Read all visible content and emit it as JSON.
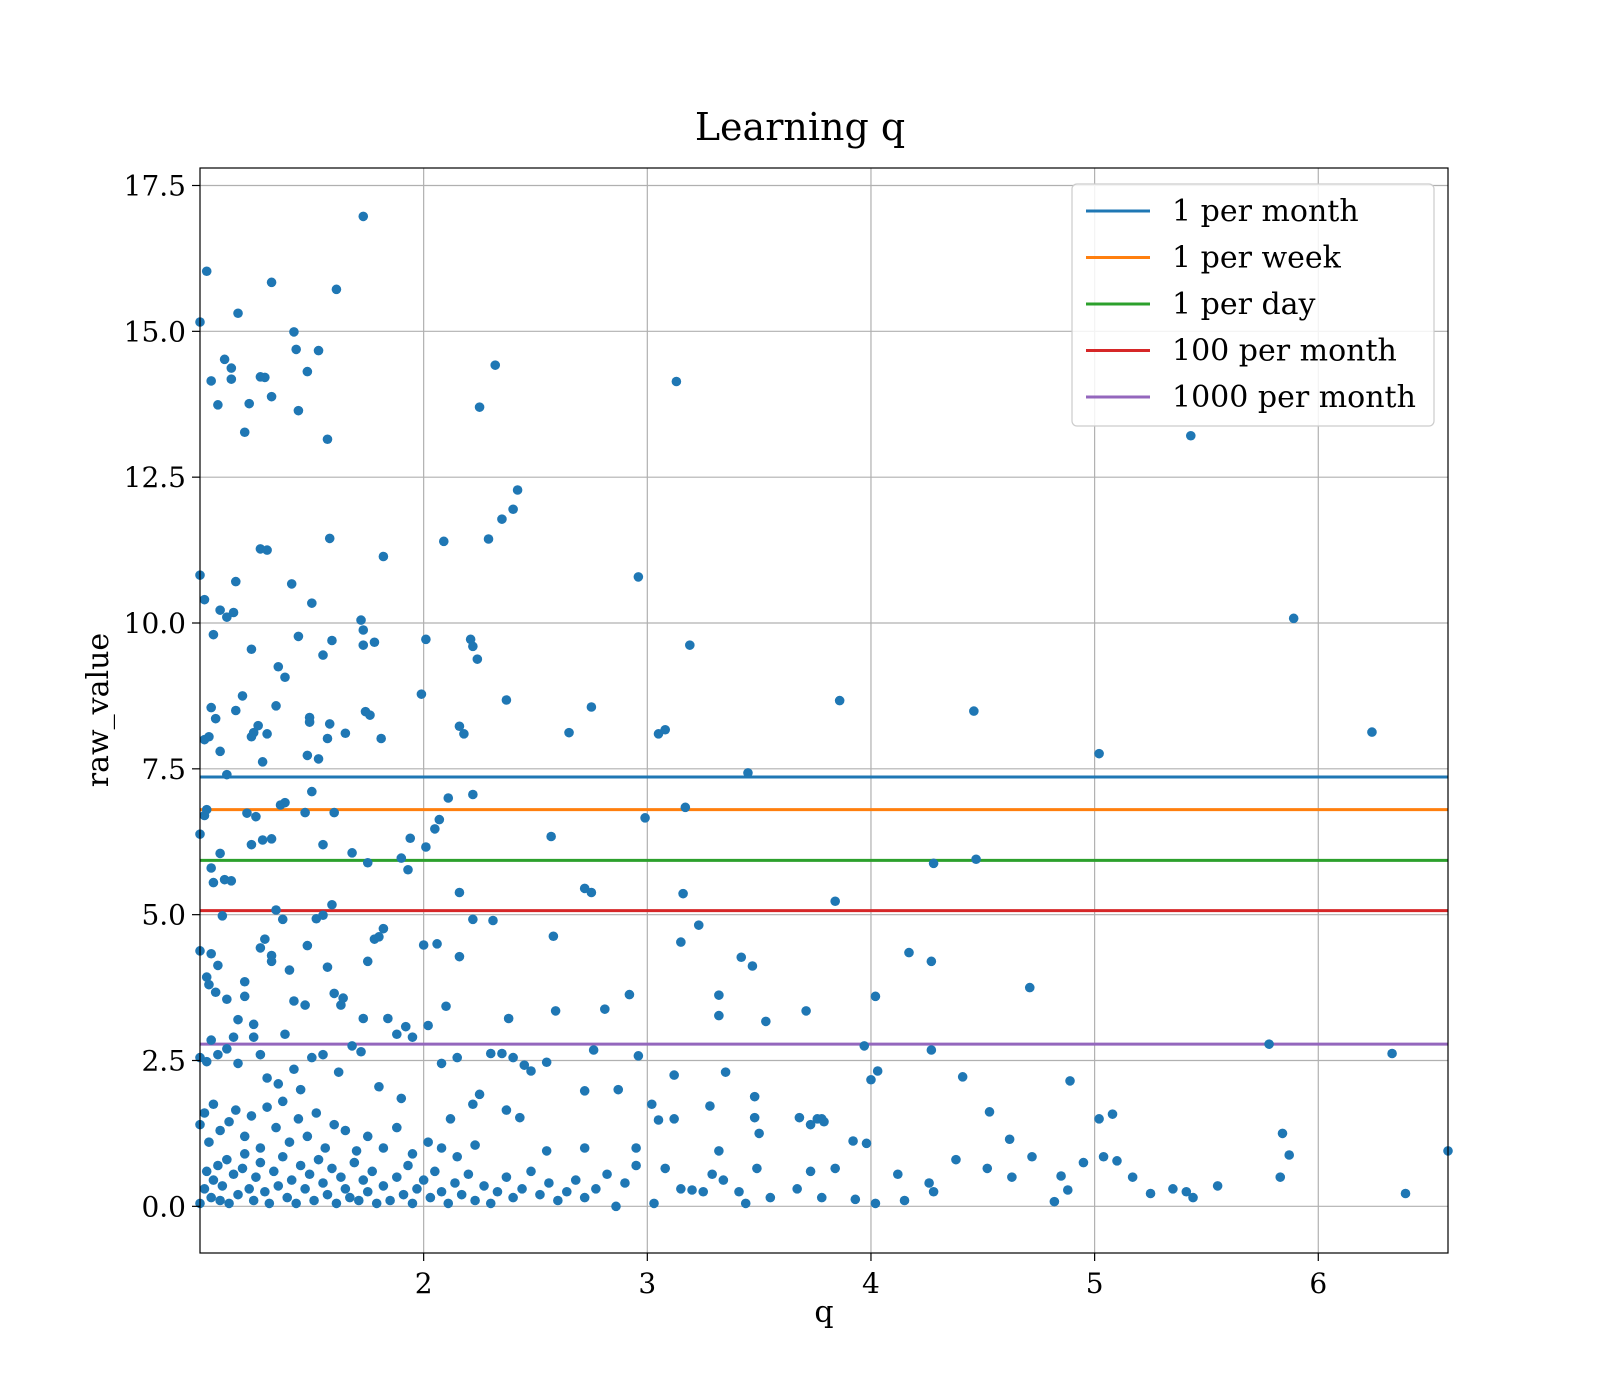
{
  "chart_data": {
    "type": "scatter",
    "title": "Learning q",
    "xlabel": "q",
    "ylabel": "raw_value",
    "xlim": [
      1.0,
      6.58
    ],
    "ylim": [
      -0.8,
      17.8
    ],
    "x_ticks": [
      2,
      3,
      4,
      5,
      6
    ],
    "y_ticks": [
      0.0,
      2.5,
      5.0,
      7.5,
      10.0,
      12.5,
      15.0,
      17.5
    ],
    "x_tick_labels": [
      "2",
      "3",
      "4",
      "5",
      "6"
    ],
    "y_tick_labels": [
      "0.0",
      "2.5",
      "5.0",
      "7.5",
      "10.0",
      "12.5",
      "15.0",
      "17.5"
    ],
    "grid": true,
    "legend_position": "top-right",
    "point_color": "#1f77b4",
    "hlines": [
      {
        "name": "1 per month",
        "y": 7.36,
        "color": "#1f77b4"
      },
      {
        "name": "1 per week",
        "y": 6.8,
        "color": "#ff7f0e"
      },
      {
        "name": "1 per day",
        "y": 5.93,
        "color": "#2ca02c"
      },
      {
        "name": "100 per month",
        "y": 5.07,
        "color": "#d62728"
      },
      {
        "name": "1000 per month",
        "y": 2.78,
        "color": "#9467bd"
      }
    ],
    "points": [
      [
        1.0,
        15.16
      ],
      [
        1.03,
        16.03
      ],
      [
        1.05,
        14.15
      ],
      [
        1.08,
        13.74
      ],
      [
        1.11,
        14.52
      ],
      [
        1.14,
        14.37
      ],
      [
        1.14,
        14.18
      ],
      [
        1.17,
        15.31
      ],
      [
        1.2,
        13.27
      ],
      [
        1.22,
        13.76
      ],
      [
        1.27,
        14.22
      ],
      [
        1.29,
        14.21
      ],
      [
        1.32,
        15.84
      ],
      [
        1.32,
        13.88
      ],
      [
        1.42,
        14.99
      ],
      [
        1.43,
        14.69
      ],
      [
        1.44,
        13.64
      ],
      [
        1.48,
        14.31
      ],
      [
        1.53,
        14.67
      ],
      [
        1.57,
        13.15
      ],
      [
        1.61,
        15.72
      ],
      [
        1.73,
        16.97
      ],
      [
        2.32,
        14.42
      ],
      [
        2.25,
        13.7
      ],
      [
        3.13,
        14.14
      ],
      [
        5.43,
        13.21
      ],
      [
        1.0,
        10.82
      ],
      [
        1.02,
        10.4
      ],
      [
        1.06,
        9.8
      ],
      [
        1.09,
        10.22
      ],
      [
        1.12,
        10.1
      ],
      [
        1.15,
        10.18
      ],
      [
        1.16,
        10.71
      ],
      [
        1.23,
        9.55
      ],
      [
        1.27,
        11.27
      ],
      [
        1.3,
        11.25
      ],
      [
        1.35,
        9.25
      ],
      [
        1.38,
        9.07
      ],
      [
        1.41,
        10.67
      ],
      [
        1.44,
        9.77
      ],
      [
        1.5,
        10.34
      ],
      [
        1.55,
        9.45
      ],
      [
        1.58,
        11.45
      ],
      [
        1.59,
        9.7
      ],
      [
        1.72,
        10.05
      ],
      [
        1.73,
        9.88
      ],
      [
        1.73,
        9.62
      ],
      [
        1.78,
        9.67
      ],
      [
        1.82,
        11.14
      ],
      [
        2.01,
        9.72
      ],
      [
        2.09,
        11.4
      ],
      [
        2.21,
        9.72
      ],
      [
        2.22,
        9.6
      ],
      [
        2.24,
        9.38
      ],
      [
        2.29,
        11.44
      ],
      [
        2.35,
        11.78
      ],
      [
        2.4,
        11.95
      ],
      [
        2.42,
        12.28
      ],
      [
        2.96,
        10.79
      ],
      [
        3.19,
        9.62
      ],
      [
        5.89,
        10.08
      ],
      [
        1.02,
        8.0
      ],
      [
        1.04,
        8.05
      ],
      [
        1.05,
        8.55
      ],
      [
        1.07,
        8.36
      ],
      [
        1.09,
        7.8
      ],
      [
        1.12,
        7.4
      ],
      [
        1.16,
        8.5
      ],
      [
        1.19,
        8.75
      ],
      [
        1.23,
        8.05
      ],
      [
        1.24,
        8.12
      ],
      [
        1.26,
        8.24
      ],
      [
        1.28,
        7.62
      ],
      [
        1.3,
        8.1
      ],
      [
        1.34,
        8.58
      ],
      [
        1.48,
        7.73
      ],
      [
        1.49,
        8.38
      ],
      [
        1.49,
        8.3
      ],
      [
        1.53,
        7.67
      ],
      [
        1.57,
        8.02
      ],
      [
        1.58,
        8.27
      ],
      [
        1.65,
        8.11
      ],
      [
        1.74,
        8.48
      ],
      [
        1.76,
        8.42
      ],
      [
        1.81,
        8.02
      ],
      [
        1.99,
        8.78
      ],
      [
        2.16,
        8.23
      ],
      [
        2.18,
        8.1
      ],
      [
        2.37,
        8.68
      ],
      [
        2.65,
        8.12
      ],
      [
        2.75,
        8.56
      ],
      [
        3.05,
        8.1
      ],
      [
        3.08,
        8.17
      ],
      [
        3.86,
        8.67
      ],
      [
        4.46,
        8.49
      ],
      [
        6.24,
        8.13
      ],
      [
        1.0,
        6.38
      ],
      [
        1.02,
        6.7
      ],
      [
        1.03,
        6.8
      ],
      [
        1.05,
        5.8
      ],
      [
        1.06,
        5.55
      ],
      [
        1.09,
        6.05
      ],
      [
        1.11,
        5.6
      ],
      [
        1.14,
        5.58
      ],
      [
        1.21,
        6.74
      ],
      [
        1.23,
        6.2
      ],
      [
        1.25,
        6.68
      ],
      [
        1.28,
        6.28
      ],
      [
        1.32,
        6.3
      ],
      [
        1.36,
        6.88
      ],
      [
        1.38,
        6.92
      ],
      [
        1.47,
        6.75
      ],
      [
        1.5,
        7.11
      ],
      [
        1.55,
        6.2
      ],
      [
        1.6,
        6.75
      ],
      [
        1.68,
        6.06
      ],
      [
        1.75,
        5.89
      ],
      [
        1.9,
        5.97
      ],
      [
        1.93,
        5.77
      ],
      [
        1.94,
        6.31
      ],
      [
        2.01,
        6.16
      ],
      [
        2.05,
        6.47
      ],
      [
        2.07,
        6.63
      ],
      [
        2.11,
        7.0
      ],
      [
        2.22,
        7.06
      ],
      [
        2.57,
        6.34
      ],
      [
        2.99,
        6.66
      ],
      [
        3.17,
        6.84
      ],
      [
        3.45,
        7.43
      ],
      [
        4.28,
        5.88
      ],
      [
        4.47,
        5.95
      ],
      [
        5.02,
        7.76
      ],
      [
        1.0,
        4.38
      ],
      [
        1.03,
        3.93
      ],
      [
        1.04,
        3.8
      ],
      [
        1.05,
        4.33
      ],
      [
        1.07,
        3.67
      ],
      [
        1.08,
        4.13
      ],
      [
        1.1,
        4.98
      ],
      [
        1.12,
        3.55
      ],
      [
        1.17,
        3.2
      ],
      [
        1.2,
        3.6
      ],
      [
        1.2,
        3.85
      ],
      [
        1.24,
        3.12
      ],
      [
        1.27,
        4.43
      ],
      [
        1.29,
        4.58
      ],
      [
        1.32,
        4.3
      ],
      [
        1.32,
        4.2
      ],
      [
        1.34,
        5.08
      ],
      [
        1.37,
        4.92
      ],
      [
        1.4,
        4.05
      ],
      [
        1.42,
        3.52
      ],
      [
        1.47,
        3.45
      ],
      [
        1.48,
        4.47
      ],
      [
        1.52,
        4.93
      ],
      [
        1.55,
        4.99
      ],
      [
        1.57,
        4.1
      ],
      [
        1.59,
        5.17
      ],
      [
        1.6,
        3.65
      ],
      [
        1.63,
        3.45
      ],
      [
        1.64,
        3.57
      ],
      [
        1.73,
        3.22
      ],
      [
        1.75,
        4.2
      ],
      [
        1.78,
        4.58
      ],
      [
        1.8,
        4.62
      ],
      [
        1.82,
        4.76
      ],
      [
        1.84,
        3.22
      ],
      [
        1.92,
        3.08
      ],
      [
        2.0,
        4.48
      ],
      [
        2.02,
        3.1
      ],
      [
        2.06,
        4.5
      ],
      [
        2.1,
        3.43
      ],
      [
        2.16,
        4.28
      ],
      [
        2.16,
        5.38
      ],
      [
        2.22,
        4.92
      ],
      [
        2.31,
        4.9
      ],
      [
        2.38,
        3.22
      ],
      [
        2.58,
        4.63
      ],
      [
        2.59,
        3.35
      ],
      [
        2.72,
        5.45
      ],
      [
        2.75,
        5.38
      ],
      [
        2.81,
        3.38
      ],
      [
        2.92,
        3.63
      ],
      [
        3.15,
        4.53
      ],
      [
        3.16,
        5.36
      ],
      [
        3.23,
        4.82
      ],
      [
        3.32,
        3.62
      ],
      [
        3.32,
        3.27
      ],
      [
        3.42,
        4.27
      ],
      [
        3.47,
        4.12
      ],
      [
        3.53,
        3.17
      ],
      [
        3.71,
        3.35
      ],
      [
        3.84,
        5.23
      ],
      [
        4.02,
        3.6
      ],
      [
        4.17,
        4.35
      ],
      [
        4.27,
        4.2
      ],
      [
        4.71,
        3.75
      ],
      [
        1.0,
        2.55
      ],
      [
        1.03,
        2.48
      ],
      [
        1.05,
        2.85
      ],
      [
        1.08,
        2.6
      ],
      [
        1.12,
        2.7
      ],
      [
        1.15,
        2.9
      ],
      [
        1.17,
        2.45
      ],
      [
        1.24,
        2.9
      ],
      [
        1.27,
        2.6
      ],
      [
        1.3,
        2.2
      ],
      [
        1.35,
        2.1
      ],
      [
        1.38,
        2.95
      ],
      [
        1.42,
        2.35
      ],
      [
        1.45,
        2.0
      ],
      [
        1.5,
        2.55
      ],
      [
        1.55,
        2.6
      ],
      [
        1.62,
        2.3
      ],
      [
        1.68,
        2.75
      ],
      [
        1.72,
        2.65
      ],
      [
        1.8,
        2.05
      ],
      [
        1.88,
        2.95
      ],
      [
        1.9,
        1.85
      ],
      [
        1.95,
        2.9
      ],
      [
        2.08,
        2.45
      ],
      [
        2.12,
        1.5
      ],
      [
        2.15,
        2.55
      ],
      [
        2.22,
        1.75
      ],
      [
        2.25,
        1.92
      ],
      [
        2.3,
        2.62
      ],
      [
        2.35,
        2.62
      ],
      [
        2.4,
        2.55
      ],
      [
        2.45,
        2.42
      ],
      [
        2.48,
        2.32
      ],
      [
        2.55,
        2.47
      ],
      [
        2.72,
        1.98
      ],
      [
        2.76,
        2.68
      ],
      [
        2.87,
        2.0
      ],
      [
        2.96,
        2.58
      ],
      [
        3.02,
        1.75
      ],
      [
        3.12,
        2.25
      ],
      [
        3.35,
        2.3
      ],
      [
        3.48,
        1.88
      ],
      [
        3.78,
        1.5
      ],
      [
        3.97,
        2.75
      ],
      [
        4.0,
        2.17
      ],
      [
        4.03,
        2.32
      ],
      [
        4.27,
        2.68
      ],
      [
        4.41,
        2.22
      ],
      [
        4.89,
        2.15
      ],
      [
        5.78,
        2.78
      ],
      [
        6.33,
        2.62
      ],
      [
        1.0,
        1.4
      ],
      [
        1.02,
        1.6
      ],
      [
        1.04,
        1.1
      ],
      [
        1.06,
        1.75
      ],
      [
        1.09,
        1.3
      ],
      [
        1.13,
        1.45
      ],
      [
        1.16,
        1.65
      ],
      [
        1.2,
        1.2
      ],
      [
        1.23,
        1.55
      ],
      [
        1.27,
        1.0
      ],
      [
        1.3,
        1.7
      ],
      [
        1.34,
        1.35
      ],
      [
        1.37,
        1.8
      ],
      [
        1.4,
        1.1
      ],
      [
        1.44,
        1.5
      ],
      [
        1.48,
        1.2
      ],
      [
        1.52,
        1.6
      ],
      [
        1.56,
        1.0
      ],
      [
        1.6,
        1.4
      ],
      [
        1.65,
        1.3
      ],
      [
        1.7,
        0.95
      ],
      [
        1.75,
        1.2
      ],
      [
        1.82,
        1.0
      ],
      [
        1.88,
        1.35
      ],
      [
        1.95,
        0.9
      ],
      [
        2.02,
        1.1
      ],
      [
        2.08,
        1.0
      ],
      [
        2.15,
        0.85
      ],
      [
        2.23,
        1.05
      ],
      [
        2.37,
        1.65
      ],
      [
        2.43,
        1.52
      ],
      [
        2.55,
        0.95
      ],
      [
        2.72,
        1.0
      ],
      [
        2.95,
        1.0
      ],
      [
        3.05,
        1.48
      ],
      [
        3.12,
        1.5
      ],
      [
        3.28,
        1.72
      ],
      [
        3.32,
        0.95
      ],
      [
        3.48,
        1.52
      ],
      [
        3.5,
        1.25
      ],
      [
        3.68,
        1.52
      ],
      [
        3.73,
        1.4
      ],
      [
        3.76,
        1.5
      ],
      [
        3.79,
        1.45
      ],
      [
        3.92,
        1.12
      ],
      [
        3.98,
        1.08
      ],
      [
        4.53,
        1.62
      ],
      [
        4.62,
        1.15
      ],
      [
        5.02,
        1.5
      ],
      [
        5.08,
        1.58
      ],
      [
        5.84,
        1.25
      ],
      [
        6.58,
        0.95
      ],
      [
        1.0,
        0.05
      ],
      [
        1.02,
        0.3
      ],
      [
        1.03,
        0.6
      ],
      [
        1.05,
        0.15
      ],
      [
        1.06,
        0.45
      ],
      [
        1.08,
        0.7
      ],
      [
        1.09,
        0.1
      ],
      [
        1.1,
        0.35
      ],
      [
        1.12,
        0.8
      ],
      [
        1.13,
        0.05
      ],
      [
        1.15,
        0.55
      ],
      [
        1.17,
        0.2
      ],
      [
        1.19,
        0.65
      ],
      [
        1.2,
        0.9
      ],
      [
        1.22,
        0.3
      ],
      [
        1.24,
        0.1
      ],
      [
        1.25,
        0.5
      ],
      [
        1.27,
        0.75
      ],
      [
        1.29,
        0.25
      ],
      [
        1.31,
        0.05
      ],
      [
        1.33,
        0.6
      ],
      [
        1.35,
        0.35
      ],
      [
        1.37,
        0.85
      ],
      [
        1.39,
        0.15
      ],
      [
        1.41,
        0.45
      ],
      [
        1.43,
        0.05
      ],
      [
        1.45,
        0.7
      ],
      [
        1.47,
        0.3
      ],
      [
        1.49,
        0.55
      ],
      [
        1.51,
        0.1
      ],
      [
        1.53,
        0.8
      ],
      [
        1.55,
        0.4
      ],
      [
        1.57,
        0.2
      ],
      [
        1.59,
        0.65
      ],
      [
        1.61,
        0.05
      ],
      [
        1.63,
        0.5
      ],
      [
        1.65,
        0.3
      ],
      [
        1.67,
        0.15
      ],
      [
        1.69,
        0.75
      ],
      [
        1.71,
        0.1
      ],
      [
        1.73,
        0.45
      ],
      [
        1.75,
        0.25
      ],
      [
        1.77,
        0.6
      ],
      [
        1.79,
        0.05
      ],
      [
        1.82,
        0.35
      ],
      [
        1.85,
        0.1
      ],
      [
        1.88,
        0.5
      ],
      [
        1.91,
        0.2
      ],
      [
        1.93,
        0.7
      ],
      [
        1.95,
        0.05
      ],
      [
        1.97,
        0.3
      ],
      [
        2.0,
        0.45
      ],
      [
        2.03,
        0.15
      ],
      [
        2.05,
        0.6
      ],
      [
        2.08,
        0.25
      ],
      [
        2.11,
        0.05
      ],
      [
        2.14,
        0.4
      ],
      [
        2.17,
        0.2
      ],
      [
        2.2,
        0.55
      ],
      [
        2.23,
        0.1
      ],
      [
        2.27,
        0.35
      ],
      [
        2.3,
        0.05
      ],
      [
        2.33,
        0.25
      ],
      [
        2.37,
        0.5
      ],
      [
        2.4,
        0.15
      ],
      [
        2.44,
        0.3
      ],
      [
        2.48,
        0.6
      ],
      [
        2.52,
        0.2
      ],
      [
        2.56,
        0.4
      ],
      [
        2.6,
        0.1
      ],
      [
        2.64,
        0.25
      ],
      [
        2.68,
        0.45
      ],
      [
        2.72,
        0.15
      ],
      [
        2.77,
        0.3
      ],
      [
        2.82,
        0.55
      ],
      [
        2.86,
        0.0
      ],
      [
        2.9,
        0.4
      ],
      [
        2.95,
        0.7
      ],
      [
        3.03,
        0.05
      ],
      [
        3.08,
        0.65
      ],
      [
        3.15,
        0.3
      ],
      [
        3.2,
        0.28
      ],
      [
        3.25,
        0.25
      ],
      [
        3.29,
        0.55
      ],
      [
        3.34,
        0.45
      ],
      [
        3.41,
        0.25
      ],
      [
        3.44,
        0.05
      ],
      [
        3.49,
        0.65
      ],
      [
        3.55,
        0.15
      ],
      [
        3.67,
        0.3
      ],
      [
        3.73,
        0.6
      ],
      [
        3.78,
        0.15
      ],
      [
        3.84,
        0.65
      ],
      [
        3.93,
        0.12
      ],
      [
        4.02,
        0.05
      ],
      [
        4.12,
        0.55
      ],
      [
        4.15,
        0.1
      ],
      [
        4.26,
        0.4
      ],
      [
        4.28,
        0.25
      ],
      [
        4.38,
        0.8
      ],
      [
        4.52,
        0.65
      ],
      [
        4.63,
        0.5
      ],
      [
        4.72,
        0.85
      ],
      [
        4.82,
        0.08
      ],
      [
        4.85,
        0.52
      ],
      [
        4.88,
        0.28
      ],
      [
        4.95,
        0.75
      ],
      [
        5.04,
        0.85
      ],
      [
        5.1,
        0.78
      ],
      [
        5.17,
        0.5
      ],
      [
        5.25,
        0.22
      ],
      [
        5.35,
        0.3
      ],
      [
        5.41,
        0.25
      ],
      [
        5.44,
        0.15
      ],
      [
        5.55,
        0.35
      ],
      [
        5.83,
        0.5
      ],
      [
        5.87,
        0.88
      ],
      [
        6.39,
        0.22
      ]
    ]
  }
}
